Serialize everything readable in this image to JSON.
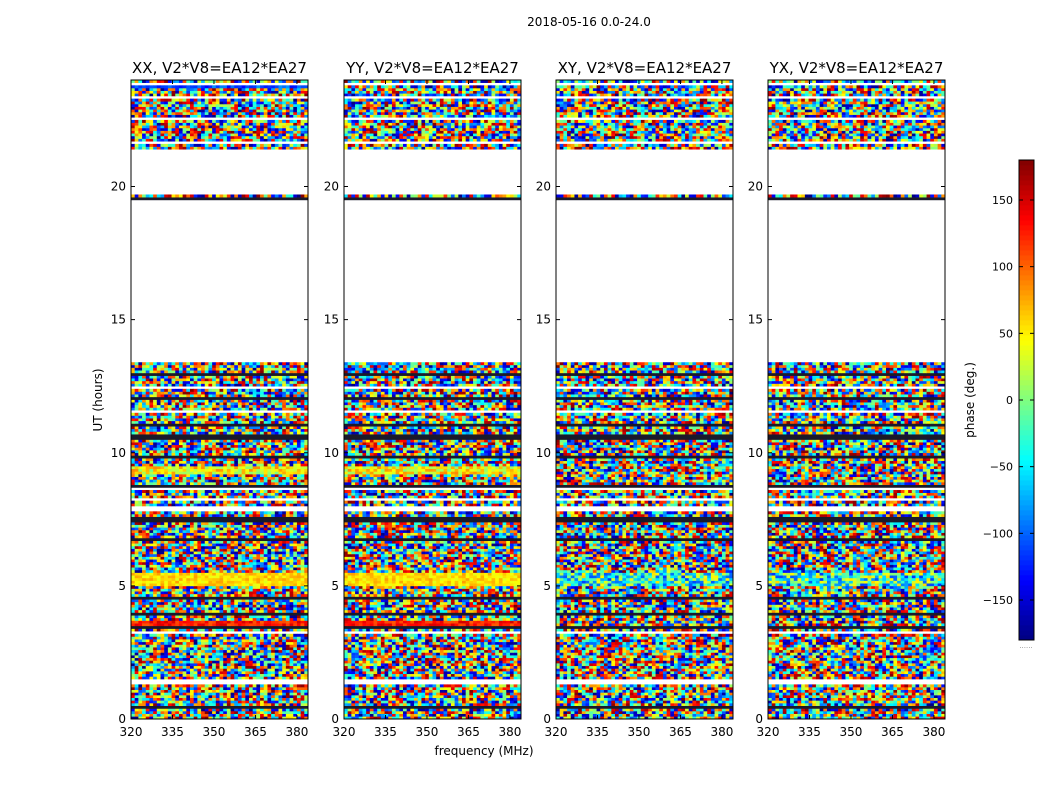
{
  "figure": {
    "suptitle": "2018-05-16 0.0-24.0",
    "xlabel": "frequency (MHz)",
    "ylabel": "UT (hours)",
    "colorbar_label": "phase (deg.)",
    "colorbar_footnote": "......"
  },
  "chart_data": {
    "type": "heatmap",
    "title": "2018-05-16 0.0-24.0",
    "xlabel": "frequency (MHz)",
    "ylabel": "UT (hours)",
    "x_ticks": [
      "320",
      "335",
      "350",
      "365",
      "380"
    ],
    "x_tick_values": [
      320,
      335,
      350,
      365,
      380
    ],
    "y_ticks": [
      "0",
      "5",
      "10",
      "15",
      "20"
    ],
    "y_tick_values": [
      0,
      5,
      10,
      15,
      20
    ],
    "xlim": [
      320,
      384
    ],
    "ylim": [
      0,
      24
    ],
    "colorbar": {
      "label": "phase (deg.)",
      "colormap": "jet",
      "range": [
        -180,
        180
      ],
      "ticks": [
        -150,
        -100,
        -50,
        0,
        50,
        100,
        150
      ],
      "tick_labels": [
        "−150",
        "−100",
        "−50",
        "0",
        "50",
        "100",
        "150"
      ]
    },
    "panels": [
      {
        "title": "XX, V2*V8=EA12*EA27",
        "polarization": "XX",
        "baseline": "V2*V8=EA12*EA27"
      },
      {
        "title": "YY, V2*V8=EA12*EA27",
        "polarization": "YY",
        "baseline": "V2*V8=EA12*EA27"
      },
      {
        "title": "XY, V2*V8=EA12*EA27",
        "polarization": "XY",
        "baseline": "V2*V8=EA12*EA27"
      },
      {
        "title": "YX, V2*V8=EA12*EA27",
        "polarization": "YX",
        "baseline": "V2*V8=EA12*EA27"
      }
    ],
    "flagged_ut_ranges": [
      [
        13.4,
        19.5
      ],
      [
        19.75,
        21.4
      ]
    ],
    "description": "Phase vs frequency and UT; mostly noise-like phases with blank (flagged) gaps. XX and YY show coherent phase bands near UT 3.5 and 5.2."
  }
}
